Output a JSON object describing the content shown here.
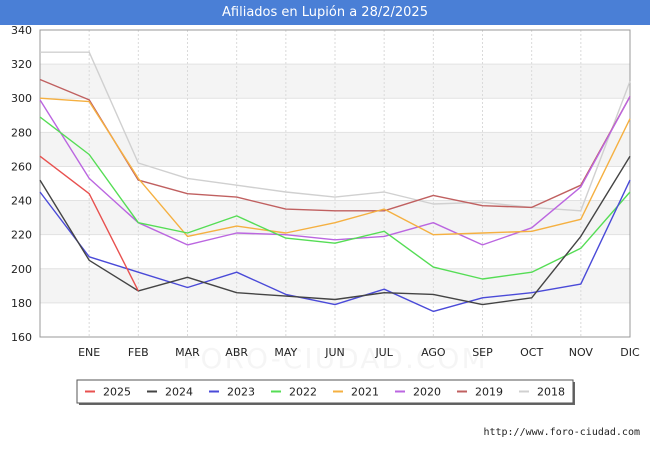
{
  "page": {
    "title": "Afiliados en Lupión a 28/2/2025",
    "footer_url": "http://www.foro-ciudad.com",
    "watermark": "FORO-CIUDAD.COM"
  },
  "chart_data": {
    "type": "line",
    "title": "Afiliados en Lupión a 28/2/2025",
    "xlabel": "",
    "ylabel": "",
    "categories": [
      "",
      "ENE",
      "FEB",
      "MAR",
      "ABR",
      "MAY",
      "JUN",
      "JUL",
      "AGO",
      "SEP",
      "OCT",
      "NOV",
      "DIC"
    ],
    "ylim": [
      160,
      340
    ],
    "yticks": [
      160,
      180,
      200,
      220,
      240,
      260,
      280,
      300,
      320,
      340
    ],
    "grid": true,
    "legend_position": "bottom",
    "series": [
      {
        "name": "2025",
        "color": "#e8514f",
        "values": [
          266,
          244,
          187,
          null,
          null,
          null,
          null,
          null,
          null,
          null,
          null,
          null,
          null
        ]
      },
      {
        "name": "2024",
        "color": "#444444",
        "values": [
          252,
          205,
          187,
          195,
          186,
          184,
          182,
          186,
          185,
          179,
          183,
          219,
          266
        ]
      },
      {
        "name": "2023",
        "color": "#4a4ad8",
        "values": [
          245,
          207,
          198,
          189,
          198,
          185,
          179,
          188,
          175,
          183,
          186,
          191,
          252
        ]
      },
      {
        "name": "2022",
        "color": "#55dd55",
        "values": [
          289,
          267,
          227,
          221,
          231,
          218,
          215,
          222,
          201,
          194,
          198,
          212,
          245
        ]
      },
      {
        "name": "2021",
        "color": "#f5b041",
        "values": [
          300,
          298,
          253,
          219,
          225,
          221,
          227,
          235,
          220,
          221,
          222,
          229,
          288
        ]
      },
      {
        "name": "2020",
        "color": "#bb66e0",
        "values": [
          299,
          253,
          227,
          214,
          221,
          220,
          217,
          219,
          227,
          214,
          224,
          248,
          301
        ]
      },
      {
        "name": "2019",
        "color": "#c06060",
        "values": [
          311,
          299,
          252,
          244,
          242,
          235,
          234,
          234,
          243,
          237,
          236,
          249,
          301
        ]
      },
      {
        "name": "2018",
        "color": "#d0d0d0",
        "values": [
          327,
          327,
          262,
          253,
          249,
          245,
          242,
          245,
          238,
          239,
          236,
          234,
          310
        ]
      }
    ]
  }
}
